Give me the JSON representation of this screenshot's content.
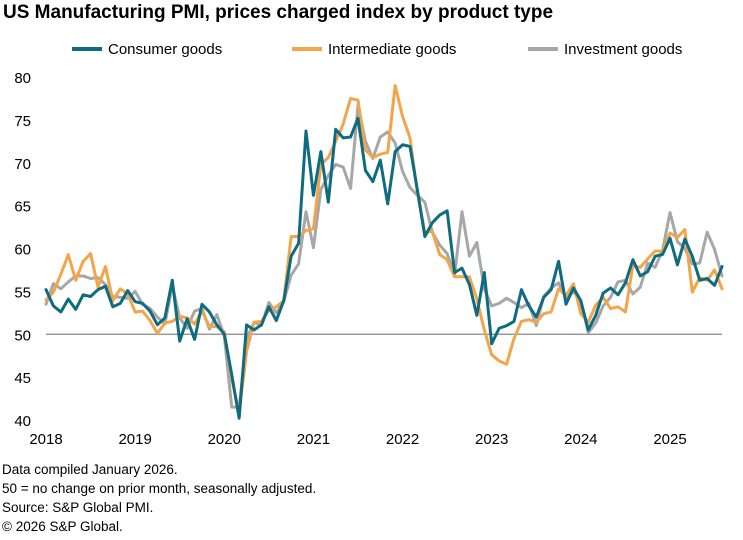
{
  "chart_data": {
    "type": "line",
    "title": "US Manufacturing PMI, prices charged index by product type",
    "xlabel": "",
    "ylabel": "",
    "ylim": [
      40,
      80
    ],
    "yticks": [
      40,
      45,
      50,
      55,
      60,
      65,
      70,
      75,
      80
    ],
    "xticks": [
      "2018",
      "2019",
      "2020",
      "2021",
      "2022",
      "2023",
      "2024",
      "2025"
    ],
    "x_start": "2018-01",
    "x_end": "2025-12",
    "reference_line": 50,
    "legend": "top",
    "series": [
      {
        "name": "Consumer goods",
        "color": "#0e6b80",
        "values": [
          55.2,
          53.3,
          52.6,
          54.1,
          52.9,
          54.6,
          54.4,
          55.2,
          55.6,
          53.2,
          53.6,
          55.1,
          53.8,
          53.6,
          52.7,
          51.1,
          51.9,
          56.3,
          49.2,
          51.8,
          49.4,
          53.5,
          52.6,
          51.1,
          50.0,
          45.3,
          40.2,
          51.1,
          50.5,
          51.1,
          53.2,
          51.6,
          53.9,
          59.1,
          60.6,
          73.7,
          66.2,
          71.3,
          65.4,
          73.9,
          72.9,
          73.0,
          75.2,
          69.1,
          67.8,
          70.3,
          65.2,
          71.3,
          72.1,
          71.9,
          66.8,
          61.4,
          63.0,
          63.9,
          64.4,
          57.2,
          57.7,
          55.8,
          52.2,
          57.2,
          48.9,
          50.7,
          51.0,
          51.5,
          55.2,
          53.3,
          52.0,
          54.3,
          55.2,
          58.5,
          53.5,
          55.4,
          53.9,
          50.5,
          52.2,
          54.8,
          55.4,
          54.6,
          56.0,
          58.7,
          56.8,
          57.3,
          59.1,
          59.3,
          61.2,
          58.1,
          61.1,
          59.1,
          56.3,
          56.5,
          55.7,
          57.9
        ]
      },
      {
        "name": "Intermediate goods",
        "color": "#f2a54a",
        "values": [
          54.0,
          54.9,
          57.0,
          59.3,
          56.3,
          58.5,
          59.4,
          55.5,
          57.9,
          53.9,
          55.3,
          54.7,
          52.6,
          52.7,
          51.6,
          50.1,
          51.3,
          51.5,
          52.1,
          51.9,
          51.2,
          52.7,
          50.9,
          50.9,
          50.3,
          44.8,
          40.8,
          48.0,
          51.4,
          51.5,
          52.8,
          53.2,
          53.9,
          61.4,
          61.4,
          62.1,
          62.3,
          69.8,
          70.6,
          72.5,
          74.5,
          77.5,
          77.3,
          71.5,
          70.6,
          71.0,
          71.2,
          79.0,
          75.4,
          72.9,
          66.5,
          61.9,
          62.0,
          59.3,
          58.7,
          56.7,
          56.7,
          56.7,
          54.1,
          50.5,
          47.6,
          46.9,
          46.5,
          49.5,
          51.5,
          51.7,
          51.4,
          52.4,
          52.6,
          55.3,
          54.5,
          55.9,
          52.4,
          51.4,
          53.4,
          54.3,
          53.0,
          53.2,
          52.6,
          58.0,
          57.8,
          58.8,
          59.7,
          59.7,
          61.8,
          61.3,
          62.2,
          54.9,
          56.6,
          56.3,
          57.5,
          55.3
        ]
      },
      {
        "name": "Investment goods",
        "color": "#a7a7a7",
        "values": [
          53.5,
          55.9,
          55.3,
          56.1,
          56.8,
          56.8,
          56.5,
          56.6,
          55.8,
          54.4,
          54.3,
          54.2,
          55.0,
          53.5,
          53.0,
          52.0,
          51.2,
          55.7,
          51.9,
          50.7,
          52.7,
          53.0,
          50.6,
          52.3,
          49.8,
          41.5,
          41.5,
          49.4,
          51.4,
          51.0,
          53.7,
          52.5,
          53.8,
          56.9,
          58.2,
          64.3,
          60.1,
          66.9,
          68.5,
          69.8,
          69.5,
          67.0,
          76.7,
          72.5,
          70.5,
          73.0,
          73.6,
          72.3,
          69.0,
          67.1,
          66.2,
          65.4,
          61.9,
          60.4,
          59.4,
          56.9,
          64.3,
          59.1,
          60.7,
          55.3,
          53.3,
          53.6,
          54.2,
          53.7,
          53.1,
          53.6,
          51.0,
          54.4,
          55.4,
          56.0,
          54.2,
          55.0,
          53.8,
          50.2,
          51.3,
          53.3,
          54.3,
          56.1,
          56.3,
          54.7,
          55.5,
          58.3,
          57.8,
          59.8,
          64.2,
          60.8,
          60.0,
          58.2,
          58.3,
          61.9,
          59.9,
          56.8
        ]
      }
    ]
  },
  "notes": [
    "Data compiled January 2026.",
    "50 = no change on prior month, seasonally adjusted.",
    "Source: S&P Global PMI.",
    "© 2026 S&P Global."
  ]
}
